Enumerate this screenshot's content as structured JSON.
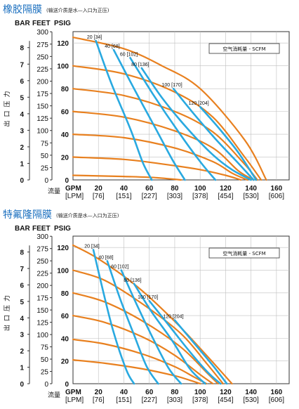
{
  "chart_data": [
    {
      "type": "line",
      "title": "橡胶隔膜",
      "subtitle": "(输送介质是水—入口为正压)",
      "y_units": [
        "BAR",
        "FEET",
        "PSIG"
      ],
      "bar_ticks": [
        "0",
        "1",
        "2",
        "3",
        "4",
        "5",
        "6",
        "7",
        "8"
      ],
      "feet_ticks": [
        "0",
        "25",
        "50",
        "75",
        "100",
        "125",
        "150",
        "175",
        "200",
        "225",
        "250",
        "275",
        "300"
      ],
      "psig_ticks": [
        "0",
        "20",
        "40",
        "60",
        "80",
        "100",
        "120"
      ],
      "ylabel": "出口压力",
      "xlabel": "流量",
      "x_units": [
        "GPM",
        "[LPM]"
      ],
      "gpm_ticks": [
        "20",
        "40",
        "60",
        "80",
        "100",
        "120",
        "140",
        "160"
      ],
      "lpm_ticks": [
        "[76]",
        "[151]",
        "[227]",
        "[303]",
        "[378]",
        "[454]",
        "[530]",
        "[606]"
      ],
      "legend": "空气消耗量 - SCFM",
      "xlim": [
        0,
        170
      ],
      "ylim_psig": [
        0,
        130
      ],
      "pressure_curves_psig": [
        {
          "x": [
            0,
            40,
            70,
            100,
            135,
            152
          ],
          "y": [
            125,
            115,
            100,
            80,
            35,
            0
          ]
        },
        {
          "x": [
            0,
            40,
            80,
            110,
            135,
            148
          ],
          "y": [
            100,
            93,
            77,
            55,
            20,
            0
          ]
        },
        {
          "x": [
            0,
            40,
            80,
            110,
            134,
            145
          ],
          "y": [
            80,
            74,
            60,
            42,
            15,
            0
          ]
        },
        {
          "x": [
            0,
            40,
            80,
            110,
            130,
            142
          ],
          "y": [
            60,
            55,
            43,
            28,
            8,
            0
          ]
        },
        {
          "x": [
            0,
            40,
            80,
            110,
            125,
            137
          ],
          "y": [
            40,
            37,
            28,
            16,
            6,
            0
          ]
        },
        {
          "x": [
            0,
            40,
            70,
            100,
            120,
            132
          ],
          "y": [
            20,
            18,
            14,
            9,
            4,
            0
          ]
        },
        {
          "x": [
            0,
            40,
            65,
            85
          ],
          "y": [
            4,
            3,
            2,
            0
          ]
        }
      ],
      "air_curves": [
        {
          "label": "20 [34]",
          "x": [
            18,
            30,
            45,
            55,
            62
          ],
          "y": [
            122,
            85,
            45,
            15,
            0
          ]
        },
        {
          "label": "40 [68]",
          "x": [
            32,
            48,
            65,
            78,
            88
          ],
          "y": [
            114,
            80,
            45,
            18,
            0
          ]
        },
        {
          "label": "60 [102]",
          "x": [
            45,
            63,
            83,
            100,
            112
          ],
          "y": [
            107,
            75,
            42,
            16,
            0
          ]
        },
        {
          "label": "80 [136]",
          "x": [
            54,
            70,
            90,
            110,
            125,
            140
          ],
          "y": [
            98,
            72,
            45,
            22,
            9,
            0
          ]
        },
        {
          "label": "100 [170]",
          "x": [
            79,
            95,
            112,
            128,
            142
          ],
          "y": [
            80,
            58,
            36,
            17,
            0
          ]
        },
        {
          "label": "120 [204]",
          "x": [
            100,
            115,
            130,
            144
          ],
          "y": [
            64,
            45,
            24,
            0
          ]
        }
      ]
    },
    {
      "type": "line",
      "title": "特氟隆隔膜",
      "subtitle": "(输送介质是水—入口为正压)",
      "y_units": [
        "BAR",
        "FEET",
        "PSIG"
      ],
      "bar_ticks": [
        "0",
        "1",
        "2",
        "3",
        "4",
        "5",
        "6",
        "7",
        "8"
      ],
      "feet_ticks": [
        "0",
        "25",
        "50",
        "75",
        "100",
        "125",
        "150",
        "175",
        "200",
        "225",
        "250",
        "275",
        "300"
      ],
      "psig_ticks": [
        "0",
        "20",
        "40",
        "60",
        "80",
        "100",
        "120"
      ],
      "ylabel": "出口压力",
      "xlabel": "流量",
      "x_units": [
        "GPM",
        "[LPM]"
      ],
      "gpm_ticks": [
        "20",
        "40",
        "60",
        "80",
        "100",
        "120",
        "140",
        "160"
      ],
      "lpm_ticks": [
        "[76]",
        "[151]",
        "[227]",
        "[303]",
        "[378]",
        "[454]",
        "[530]",
        "[606]"
      ],
      "legend": "空气消耗量 - SCFM",
      "xlim": [
        0,
        170
      ],
      "ylim_psig": [
        0,
        130
      ],
      "pressure_curves_psig": [
        {
          "x": [
            0,
            20,
            50,
            80,
            105,
            125
          ],
          "y": [
            122,
            110,
            86,
            55,
            25,
            0
          ]
        },
        {
          "x": [
            0,
            25,
            55,
            85,
            105,
            118
          ],
          "y": [
            100,
            91,
            70,
            44,
            18,
            0
          ]
        },
        {
          "x": [
            0,
            25,
            55,
            85,
            105,
            114
          ],
          "y": [
            80,
            72,
            55,
            32,
            10,
            0
          ]
        },
        {
          "x": [
            0,
            25,
            55,
            80,
            100,
            110
          ],
          "y": [
            60,
            54,
            41,
            25,
            8,
            0
          ]
        },
        {
          "x": [
            0,
            25,
            55,
            80,
            95,
            105
          ],
          "y": [
            39,
            35,
            26,
            15,
            6,
            0
          ]
        },
        {
          "x": [
            0,
            25,
            55,
            80,
            92,
            100
          ],
          "y": [
            21,
            18,
            13,
            7,
            3,
            0
          ]
        }
      ],
      "air_curves": [
        {
          "label": "20 [34]",
          "x": [
            16,
            24,
            32,
            42,
            48
          ],
          "y": [
            118,
            80,
            45,
            12,
            0
          ]
        },
        {
          "label": "40 [68]",
          "x": [
            27,
            37,
            48,
            58,
            67
          ],
          "y": [
            108,
            75,
            43,
            15,
            0
          ]
        },
        {
          "label": "60 [102]",
          "x": [
            38,
            50,
            62,
            75,
            85
          ],
          "y": [
            100,
            70,
            42,
            14,
            0
          ]
        },
        {
          "label": "80 [136]",
          "x": [
            48,
            62,
            78,
            92,
            104
          ],
          "y": [
            88,
            63,
            38,
            13,
            0
          ]
        },
        {
          "label": "100 [170]",
          "x": [
            60,
            75,
            92,
            106,
            116
          ],
          "y": [
            73,
            52,
            28,
            10,
            0
          ]
        },
        {
          "label": "120 [204]",
          "x": [
            80,
            95,
            110,
            121
          ],
          "y": [
            56,
            36,
            16,
            0
          ]
        }
      ]
    }
  ],
  "colors": {
    "pressure": "#e8801f",
    "air": "#29a9e0",
    "title": "#1a6fbf",
    "grid": "#bfbfbf",
    "axis": "#333333"
  }
}
